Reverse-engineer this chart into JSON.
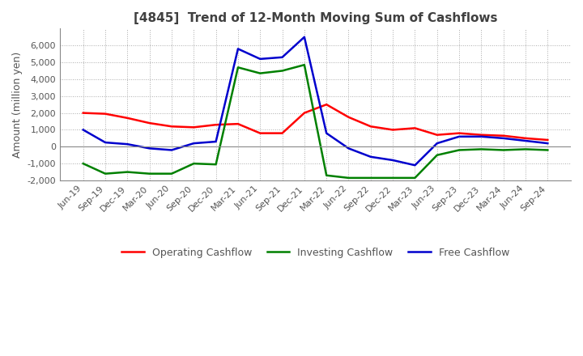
{
  "title": "[4845]  Trend of 12-Month Moving Sum of Cashflows",
  "ylabel": "Amount (million yen)",
  "ylim": [
    -2000,
    7000
  ],
  "yticks": [
    -2000,
    -1000,
    0,
    1000,
    2000,
    3000,
    4000,
    5000,
    6000
  ],
  "x_labels": [
    "Jun-19",
    "Sep-19",
    "Dec-19",
    "Mar-20",
    "Jun-20",
    "Sep-20",
    "Dec-20",
    "Mar-21",
    "Jun-21",
    "Sep-21",
    "Dec-21",
    "Mar-22",
    "Jun-22",
    "Sep-22",
    "Dec-22",
    "Mar-23",
    "Jun-23",
    "Sep-23",
    "Dec-23",
    "Mar-24",
    "Jun-24",
    "Sep-24"
  ],
  "operating": [
    2000,
    1950,
    1700,
    1400,
    1200,
    1150,
    1300,
    1350,
    800,
    800,
    2000,
    2500,
    1750,
    1200,
    1000,
    1100,
    700,
    800,
    700,
    650,
    500,
    400
  ],
  "investing": [
    -1000,
    -1600,
    -1500,
    -1600,
    -1600,
    -1000,
    -1050,
    4700,
    4350,
    4500,
    4850,
    -1700,
    -1850,
    -1850,
    -1850,
    -1850,
    -500,
    -200,
    -150,
    -200,
    -150,
    -200
  ],
  "free": [
    1000,
    250,
    150,
    -100,
    -200,
    200,
    300,
    5800,
    5200,
    5300,
    6500,
    800,
    -100,
    -600,
    -800,
    -1100,
    200,
    600,
    600,
    500,
    350,
    200
  ],
  "operating_color": "#ff0000",
  "investing_color": "#008000",
  "free_color": "#0000cd",
  "background_color": "#ffffff",
  "grid_color": "#aaaaaa",
  "title_color": "#404040",
  "label_color": "#555555",
  "title_fontsize": 11,
  "tick_fontsize": 8,
  "ylabel_fontsize": 9,
  "linewidth": 1.8
}
